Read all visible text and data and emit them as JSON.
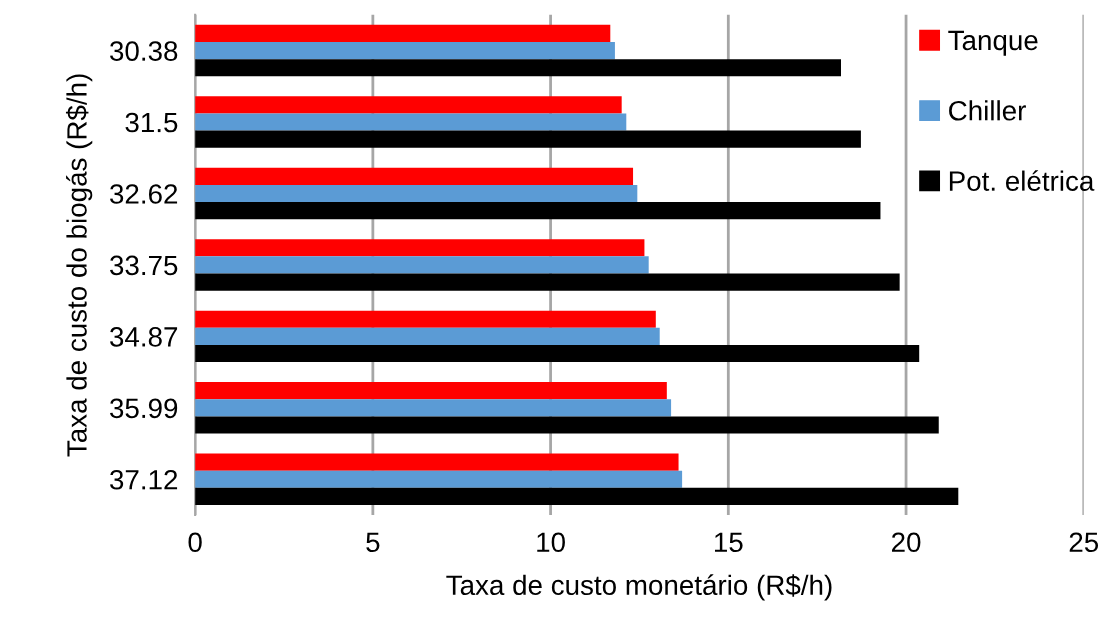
{
  "chart_data": {
    "type": "bar",
    "orientation": "horizontal",
    "xlabel": "Taxa de custo monetário (R$/h)",
    "ylabel": "Taxa de custo do biogás (R$/h)",
    "categories": [
      "30.38",
      "31.5",
      "32.62",
      "33.75",
      "34.87",
      "35.99",
      "37.12"
    ],
    "series": [
      {
        "name": "Tanque",
        "color": "#ff0000",
        "values": [
          11.68,
          12.0,
          12.32,
          12.64,
          12.96,
          13.27,
          13.6
        ]
      },
      {
        "name": "Chiller",
        "color": "#5b9bd5",
        "values": [
          11.81,
          12.13,
          12.44,
          12.76,
          13.07,
          13.39,
          13.7
        ]
      },
      {
        "name": "Pot. elétrica",
        "color": "#000000",
        "values": [
          18.17,
          18.73,
          19.28,
          19.82,
          20.37,
          20.92,
          21.47
        ]
      }
    ],
    "xlim": [
      0,
      25
    ],
    "xticks": [
      0,
      5,
      10,
      15,
      20,
      25
    ],
    "grid": "x",
    "legend": "top right"
  }
}
